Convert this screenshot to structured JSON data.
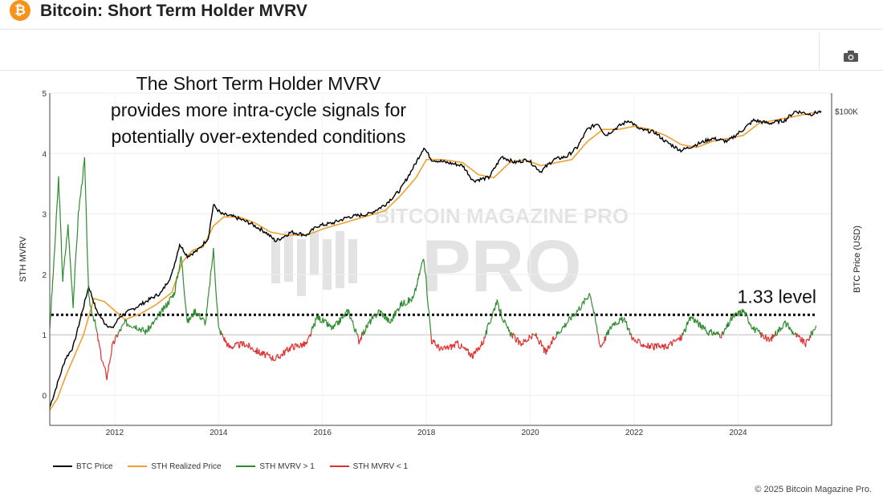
{
  "header": {
    "logo_symbol": "₿",
    "title": "Bitcoin: Short Term Holder MVRV"
  },
  "toolbar": {
    "camera_icon": "camera-icon"
  },
  "chart_data": {
    "type": "line",
    "ylabel_left": "STH MVRV",
    "ylabel_right": "BTC Price (USD)",
    "y_ticks_left": [
      "0",
      "1",
      "2",
      "3",
      "4",
      "5"
    ],
    "y_range_left": [
      -0.5,
      5
    ],
    "x_ticks": [
      "2012",
      "2014",
      "2016",
      "2018",
      "2020",
      "2022",
      "2024"
    ],
    "x_range": [
      2010.75,
      2025.8
    ],
    "right_tick_label": "$100K",
    "annotation": "The Short Term Holder MVRV provides more intra-cycle signals for potentially over-extended conditions",
    "annotation_lines": [
      "The Short Term Holder MVRV",
      "provides more intra-cycle signals for",
      "potentially over-extended conditions"
    ],
    "level_label": "1.33 level",
    "level_value": 1.33,
    "watermark": "BITCOIN MAGAZINE PRO",
    "legend": [
      "BTC Price",
      "STH Realized Price",
      "STH MVRV > 1",
      "STH MVRV < 1"
    ],
    "colors": {
      "btc_price": "#000000",
      "sth_realized": "#f0a030",
      "mvrv_above": "#2e8b2e",
      "mvrv_below": "#e03030"
    },
    "series": [
      {
        "name": "BTC Price",
        "points": [
          [
            2010.75,
            -0.2
          ],
          [
            2010.9,
            0.2
          ],
          [
            2011.05,
            0.6
          ],
          [
            2011.2,
            0.8
          ],
          [
            2011.35,
            1.3
          ],
          [
            2011.5,
            1.8
          ],
          [
            2011.65,
            1.4
          ],
          [
            2011.8,
            1.2
          ],
          [
            2011.95,
            1.1
          ],
          [
            2012.1,
            1.3
          ],
          [
            2012.3,
            1.4
          ],
          [
            2012.6,
            1.55
          ],
          [
            2012.9,
            1.7
          ],
          [
            2013.1,
            2.0
          ],
          [
            2013.25,
            2.5
          ],
          [
            2013.4,
            2.3
          ],
          [
            2013.6,
            2.4
          ],
          [
            2013.8,
            2.6
          ],
          [
            2013.9,
            3.15
          ],
          [
            2014.05,
            3.0
          ],
          [
            2014.3,
            2.95
          ],
          [
            2014.6,
            2.85
          ],
          [
            2014.9,
            2.7
          ],
          [
            2015.1,
            2.55
          ],
          [
            2015.4,
            2.7
          ],
          [
            2015.7,
            2.65
          ],
          [
            2015.9,
            2.8
          ],
          [
            2016.2,
            2.85
          ],
          [
            2016.5,
            2.95
          ],
          [
            2016.9,
            3.0
          ],
          [
            2017.2,
            3.15
          ],
          [
            2017.5,
            3.4
          ],
          [
            2017.8,
            3.85
          ],
          [
            2017.95,
            4.1
          ],
          [
            2018.1,
            3.9
          ],
          [
            2018.4,
            3.85
          ],
          [
            2018.7,
            3.8
          ],
          [
            2018.9,
            3.55
          ],
          [
            2019.2,
            3.6
          ],
          [
            2019.45,
            3.95
          ],
          [
            2019.7,
            3.85
          ],
          [
            2019.95,
            3.9
          ],
          [
            2020.2,
            3.7
          ],
          [
            2020.45,
            3.9
          ],
          [
            2020.7,
            3.95
          ],
          [
            2020.9,
            4.1
          ],
          [
            2021.1,
            4.4
          ],
          [
            2021.3,
            4.5
          ],
          [
            2021.45,
            4.3
          ],
          [
            2021.7,
            4.45
          ],
          [
            2021.9,
            4.55
          ],
          [
            2022.1,
            4.4
          ],
          [
            2022.4,
            4.35
          ],
          [
            2022.6,
            4.2
          ],
          [
            2022.9,
            4.05
          ],
          [
            2023.2,
            4.15
          ],
          [
            2023.5,
            4.25
          ],
          [
            2023.8,
            4.2
          ],
          [
            2024.1,
            4.4
          ],
          [
            2024.3,
            4.55
          ],
          [
            2024.6,
            4.5
          ],
          [
            2024.9,
            4.55
          ],
          [
            2025.1,
            4.7
          ],
          [
            2025.4,
            4.65
          ],
          [
            2025.6,
            4.7
          ]
        ]
      },
      {
        "name": "STH Realized Price",
        "points": [
          [
            2010.75,
            -0.25
          ],
          [
            2010.9,
            -0.05
          ],
          [
            2011.05,
            0.3
          ],
          [
            2011.2,
            0.6
          ],
          [
            2011.4,
            1.0
          ],
          [
            2011.6,
            1.6
          ],
          [
            2011.8,
            1.55
          ],
          [
            2012.0,
            1.4
          ],
          [
            2012.2,
            1.25
          ],
          [
            2012.5,
            1.35
          ],
          [
            2012.8,
            1.5
          ],
          [
            2013.1,
            1.7
          ],
          [
            2013.3,
            2.2
          ],
          [
            2013.5,
            2.4
          ],
          [
            2013.7,
            2.45
          ],
          [
            2013.9,
            2.8
          ],
          [
            2014.1,
            2.95
          ],
          [
            2014.4,
            2.95
          ],
          [
            2014.7,
            2.85
          ],
          [
            2015.0,
            2.7
          ],
          [
            2015.3,
            2.65
          ],
          [
            2015.7,
            2.65
          ],
          [
            2016.0,
            2.75
          ],
          [
            2016.4,
            2.85
          ],
          [
            2016.8,
            2.95
          ],
          [
            2017.2,
            3.05
          ],
          [
            2017.5,
            3.3
          ],
          [
            2017.8,
            3.6
          ],
          [
            2018.0,
            3.9
          ],
          [
            2018.3,
            3.9
          ],
          [
            2018.7,
            3.85
          ],
          [
            2019.0,
            3.65
          ],
          [
            2019.3,
            3.6
          ],
          [
            2019.6,
            3.85
          ],
          [
            2019.9,
            3.9
          ],
          [
            2020.2,
            3.8
          ],
          [
            2020.5,
            3.85
          ],
          [
            2020.8,
            3.9
          ],
          [
            2021.1,
            4.2
          ],
          [
            2021.4,
            4.4
          ],
          [
            2021.7,
            4.4
          ],
          [
            2022.0,
            4.45
          ],
          [
            2022.3,
            4.4
          ],
          [
            2022.6,
            4.3
          ],
          [
            2022.9,
            4.15
          ],
          [
            2023.2,
            4.1
          ],
          [
            2023.5,
            4.2
          ],
          [
            2023.8,
            4.25
          ],
          [
            2024.1,
            4.3
          ],
          [
            2024.4,
            4.5
          ],
          [
            2024.7,
            4.55
          ],
          [
            2025.0,
            4.6
          ],
          [
            2025.3,
            4.65
          ],
          [
            2025.6,
            4.7
          ]
        ]
      },
      {
        "name": "STH MVRV",
        "points": [
          [
            2010.75,
            1.1
          ],
          [
            2010.83,
            2.2
          ],
          [
            2010.92,
            3.6
          ],
          [
            2011.0,
            1.9
          ],
          [
            2011.1,
            2.8
          ],
          [
            2011.2,
            1.5
          ],
          [
            2011.3,
            3.0
          ],
          [
            2011.42,
            3.9
          ],
          [
            2011.5,
            1.6
          ],
          [
            2011.62,
            1.2
          ],
          [
            2011.75,
            0.6
          ],
          [
            2011.85,
            0.3
          ],
          [
            2011.95,
            0.8
          ],
          [
            2012.05,
            1.0
          ],
          [
            2012.2,
            1.2
          ],
          [
            2012.4,
            1.15
          ],
          [
            2012.6,
            1.05
          ],
          [
            2012.8,
            1.25
          ],
          [
            2013.0,
            1.5
          ],
          [
            2013.15,
            1.7
          ],
          [
            2013.28,
            2.3
          ],
          [
            2013.4,
            1.2
          ],
          [
            2013.55,
            1.4
          ],
          [
            2013.75,
            1.2
          ],
          [
            2013.9,
            2.4
          ],
          [
            2014.0,
            1.1
          ],
          [
            2014.2,
            0.8
          ],
          [
            2014.5,
            0.85
          ],
          [
            2014.8,
            0.7
          ],
          [
            2015.1,
            0.6
          ],
          [
            2015.4,
            0.8
          ],
          [
            2015.7,
            0.85
          ],
          [
            2015.9,
            1.3
          ],
          [
            2016.2,
            1.1
          ],
          [
            2016.5,
            1.4
          ],
          [
            2016.7,
            0.9
          ],
          [
            2016.9,
            1.2
          ],
          [
            2017.1,
            1.4
          ],
          [
            2017.3,
            1.2
          ],
          [
            2017.5,
            1.5
          ],
          [
            2017.75,
            1.6
          ],
          [
            2017.95,
            2.3
          ],
          [
            2018.1,
            0.9
          ],
          [
            2018.3,
            0.75
          ],
          [
            2018.6,
            0.85
          ],
          [
            2018.9,
            0.65
          ],
          [
            2019.1,
            0.9
          ],
          [
            2019.35,
            1.55
          ],
          [
            2019.55,
            1.1
          ],
          [
            2019.8,
            0.85
          ],
          [
            2020.1,
            1.0
          ],
          [
            2020.3,
            0.7
          ],
          [
            2020.5,
            1.0
          ],
          [
            2020.8,
            1.3
          ],
          [
            2021.0,
            1.5
          ],
          [
            2021.15,
            1.7
          ],
          [
            2021.35,
            0.8
          ],
          [
            2021.6,
            1.2
          ],
          [
            2021.8,
            1.25
          ],
          [
            2022.0,
            0.9
          ],
          [
            2022.3,
            0.8
          ],
          [
            2022.6,
            0.8
          ],
          [
            2022.9,
            0.95
          ],
          [
            2023.1,
            1.3
          ],
          [
            2023.4,
            1.05
          ],
          [
            2023.7,
            1.0
          ],
          [
            2023.9,
            1.3
          ],
          [
            2024.1,
            1.4
          ],
          [
            2024.3,
            1.1
          ],
          [
            2024.6,
            0.9
          ],
          [
            2024.9,
            1.2
          ],
          [
            2025.1,
            1.0
          ],
          [
            2025.3,
            0.85
          ],
          [
            2025.5,
            1.15
          ]
        ]
      }
    ]
  },
  "legend_labels": {
    "btc": "BTC Price",
    "sth": "STH Realized Price",
    "above": "STH MVRV > 1",
    "below": "STH MVRV < 1"
  },
  "footer": {
    "copyright": "© 2025 Bitcoin Magazine Pro."
  }
}
